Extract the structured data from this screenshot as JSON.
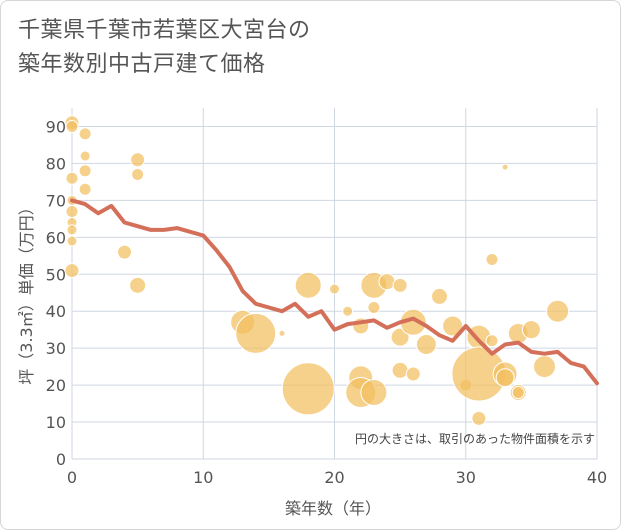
{
  "title_lines": [
    "千葉県千葉市若葉区大宮台の",
    "築年数別中古戸建て価格"
  ],
  "chart_data": {
    "type": "scatter",
    "xlabel": "築年数（年）",
    "ylabel": "坪（3.3㎡）単価（万円）",
    "xlim": [
      0,
      40
    ],
    "ylim": [
      0,
      95
    ],
    "x_ticks": [
      0,
      10,
      20,
      30,
      40
    ],
    "y_ticks": [
      0,
      10,
      20,
      30,
      40,
      50,
      60,
      70,
      80,
      90
    ],
    "grid": true,
    "annotation": "円の大きさは、取引のあった物件面積を示す",
    "colors": {
      "bubble": "#f2bf60",
      "line": "#d4705a",
      "grid": "#cfd7e3"
    },
    "bubbles": [
      {
        "x": 0,
        "y": 91,
        "r": 7
      },
      {
        "x": 0,
        "y": 90,
        "r": 6
      },
      {
        "x": 1,
        "y": 88,
        "r": 6
      },
      {
        "x": 1,
        "y": 82,
        "r": 5
      },
      {
        "x": 1,
        "y": 78,
        "r": 6
      },
      {
        "x": 0,
        "y": 76,
        "r": 6
      },
      {
        "x": 1,
        "y": 73,
        "r": 6
      },
      {
        "x": 0,
        "y": 70,
        "r": 5
      },
      {
        "x": 0,
        "y": 67,
        "r": 6
      },
      {
        "x": 0,
        "y": 64,
        "r": 5
      },
      {
        "x": 0,
        "y": 62,
        "r": 5
      },
      {
        "x": 0,
        "y": 59,
        "r": 5
      },
      {
        "x": 0,
        "y": 51,
        "r": 7
      },
      {
        "x": 5,
        "y": 81,
        "r": 7
      },
      {
        "x": 5,
        "y": 77,
        "r": 6
      },
      {
        "x": 4,
        "y": 56,
        "r": 7
      },
      {
        "x": 5,
        "y": 47,
        "r": 8
      },
      {
        "x": 13,
        "y": 37,
        "r": 12
      },
      {
        "x": 14,
        "y": 34,
        "r": 20
      },
      {
        "x": 16,
        "y": 34,
        "r": 3
      },
      {
        "x": 18,
        "y": 47,
        "r": 13
      },
      {
        "x": 18,
        "y": 19,
        "r": 26
      },
      {
        "x": 20,
        "y": 46,
        "r": 5
      },
      {
        "x": 21,
        "y": 40,
        "r": 5
      },
      {
        "x": 22,
        "y": 36,
        "r": 8
      },
      {
        "x": 22,
        "y": 22,
        "r": 12
      },
      {
        "x": 22,
        "y": 18,
        "r": 15
      },
      {
        "x": 23,
        "y": 47,
        "r": 13
      },
      {
        "x": 23,
        "y": 41,
        "r": 6
      },
      {
        "x": 23,
        "y": 18,
        "r": 13
      },
      {
        "x": 24,
        "y": 48,
        "r": 8
      },
      {
        "x": 25,
        "y": 47,
        "r": 7
      },
      {
        "x": 25,
        "y": 33,
        "r": 9
      },
      {
        "x": 25,
        "y": 24,
        "r": 8
      },
      {
        "x": 26,
        "y": 37,
        "r": 13
      },
      {
        "x": 26,
        "y": 23,
        "r": 7
      },
      {
        "x": 27,
        "y": 31,
        "r": 10
      },
      {
        "x": 28,
        "y": 44,
        "r": 8
      },
      {
        "x": 29,
        "y": 36,
        "r": 10
      },
      {
        "x": 30,
        "y": 20,
        "r": 6
      },
      {
        "x": 31,
        "y": 33,
        "r": 12
      },
      {
        "x": 31,
        "y": 23,
        "r": 27
      },
      {
        "x": 31,
        "y": 11,
        "r": 7
      },
      {
        "x": 32,
        "y": 54,
        "r": 6
      },
      {
        "x": 32,
        "y": 32,
        "r": 6
      },
      {
        "x": 33,
        "y": 79,
        "r": 3
      },
      {
        "x": 33,
        "y": 23,
        "r": 12
      },
      {
        "x": 33,
        "y": 22,
        "r": 9
      },
      {
        "x": 34,
        "y": 34,
        "r": 10
      },
      {
        "x": 34,
        "y": 18,
        "r": 8
      },
      {
        "x": 34,
        "y": 18,
        "r": 6
      },
      {
        "x": 35,
        "y": 35,
        "r": 9
      },
      {
        "x": 36,
        "y": 25,
        "r": 11
      },
      {
        "x": 37,
        "y": 40,
        "r": 11
      }
    ],
    "trend": {
      "x": [
        0,
        1,
        2,
        3,
        4,
        5,
        6,
        7,
        8,
        9,
        10,
        11,
        12,
        13,
        14,
        15,
        16,
        17,
        18,
        19,
        20,
        21,
        22,
        23,
        24,
        25,
        26,
        27,
        28,
        29,
        30,
        31,
        32,
        33,
        34,
        35,
        36,
        37,
        38,
        39,
        40
      ],
      "y": [
        70,
        69,
        66.5,
        68.5,
        64,
        63,
        62,
        62,
        62.5,
        61.5,
        60.5,
        56.5,
        52,
        45.5,
        42,
        41,
        40,
        42,
        38.5,
        40,
        35,
        36.5,
        37,
        37.5,
        35.5,
        37,
        38,
        36,
        33.5,
        32,
        36,
        32,
        28.5,
        31,
        31.5,
        29,
        28.5,
        29,
        26,
        25,
        20.5
      ]
    }
  }
}
